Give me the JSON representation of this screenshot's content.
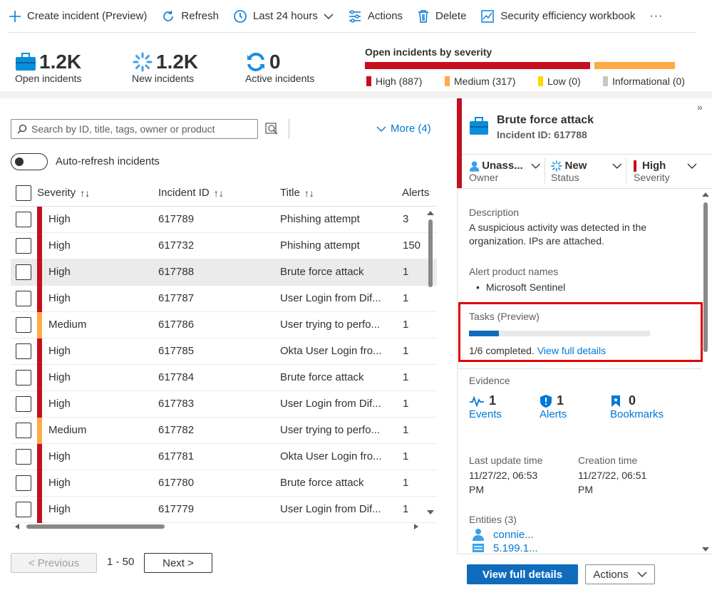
{
  "toolbar": {
    "create": "Create incident (Preview)",
    "refresh": "Refresh",
    "time": "Last 24 hours",
    "actions": "Actions",
    "delete": "Delete",
    "workbook": "Security efficiency workbook",
    "more": "···"
  },
  "stats": {
    "open_num": "1.2K",
    "open_label": "Open incidents",
    "new_num": "1.2K",
    "new_label": "New incidents",
    "active_num": "0",
    "active_label": "Active incidents"
  },
  "severity_chart": {
    "title": "Open incidents by severity",
    "legend": [
      {
        "label": "High (887)",
        "color": "#c50f1f"
      },
      {
        "label": "Medium (317)",
        "color": "#ffaa44"
      },
      {
        "label": "Low (0)",
        "color": "#ffd800"
      },
      {
        "label": "Informational (0)",
        "color": "#c8c6c4"
      }
    ]
  },
  "filters": {
    "search_placeholder": "Search by ID, title, tags, owner or product",
    "more": "More (4)",
    "auto_refresh": "Auto-refresh incidents"
  },
  "table": {
    "headers": {
      "severity": "Severity",
      "id": "Incident ID",
      "title": "Title",
      "alerts": "Alerts"
    },
    "rows": [
      {
        "severity": "High",
        "id": "617789",
        "title": "Phishing attempt",
        "alerts": "3",
        "color": "#c50f1f"
      },
      {
        "severity": "High",
        "id": "617732",
        "title": "Phishing attempt",
        "alerts": "150",
        "color": "#c50f1f"
      },
      {
        "severity": "High",
        "id": "617788",
        "title": "Brute force attack",
        "alerts": "1",
        "color": "#c50f1f"
      },
      {
        "severity": "High",
        "id": "617787",
        "title": "User Login from Dif...",
        "alerts": "1",
        "color": "#c50f1f"
      },
      {
        "severity": "Medium",
        "id": "617786",
        "title": "User trying to perfo...",
        "alerts": "1",
        "color": "#ffaa44"
      },
      {
        "severity": "High",
        "id": "617785",
        "title": "Okta User Login fro...",
        "alerts": "1",
        "color": "#c50f1f"
      },
      {
        "severity": "High",
        "id": "617784",
        "title": "Brute force attack",
        "alerts": "1",
        "color": "#c50f1f"
      },
      {
        "severity": "High",
        "id": "617783",
        "title": "User Login from Dif...",
        "alerts": "1",
        "color": "#c50f1f"
      },
      {
        "severity": "Medium",
        "id": "617782",
        "title": "User trying to perfo...",
        "alerts": "1",
        "color": "#ffaa44"
      },
      {
        "severity": "High",
        "id": "617781",
        "title": "Okta User Login fro...",
        "alerts": "1",
        "color": "#c50f1f"
      },
      {
        "severity": "High",
        "id": "617780",
        "title": "Brute force attack",
        "alerts": "1",
        "color": "#c50f1f"
      },
      {
        "severity": "High",
        "id": "617779",
        "title": "User Login from Dif...",
        "alerts": "1",
        "color": "#c50f1f"
      }
    ],
    "selected_index": 2
  },
  "pagination": {
    "previous": "< Previous",
    "range": "1 - 50",
    "next": "Next >"
  },
  "panel": {
    "title": "Brute force attack",
    "incident_id": "Incident ID: 617788",
    "owner_value": "Unass...",
    "owner_label": "Owner",
    "status_value": "New",
    "status_label": "Status",
    "severity_value": "High",
    "severity_label": "Severity",
    "description_label": "Description",
    "description": "A suspicious activity was detected in the organization. IPs are attached.",
    "alert_products_label": "Alert product names",
    "alert_product": "Microsoft Sentinel",
    "tasks_label": "Tasks (Preview)",
    "tasks_completed": 1,
    "tasks_total": 6,
    "tasks_text": "1/6 completed.",
    "tasks_link": "View full details",
    "evidence_label": "Evidence",
    "events_count": "1",
    "events_label": "Events",
    "alerts_count": "1",
    "alerts_label": "Alerts",
    "bookmarks_count": "0",
    "bookmarks_label": "Bookmarks",
    "last_update_label": "Last update time",
    "last_update_l1": "11/27/22, 06:53",
    "last_update_l2": "PM",
    "creation_label": "Creation time",
    "creation_l1": "11/27/22, 06:51",
    "creation_l2": "PM",
    "entities_label": "Entities (3)",
    "entity1": "connie...",
    "entity2": "5.199.1...",
    "view_full_button": "View full details",
    "actions_button": "Actions"
  },
  "colors": {
    "accent": "#0078d4",
    "high": "#c50f1f",
    "medium": "#ffaa44",
    "highlight_box": "#e00000"
  }
}
